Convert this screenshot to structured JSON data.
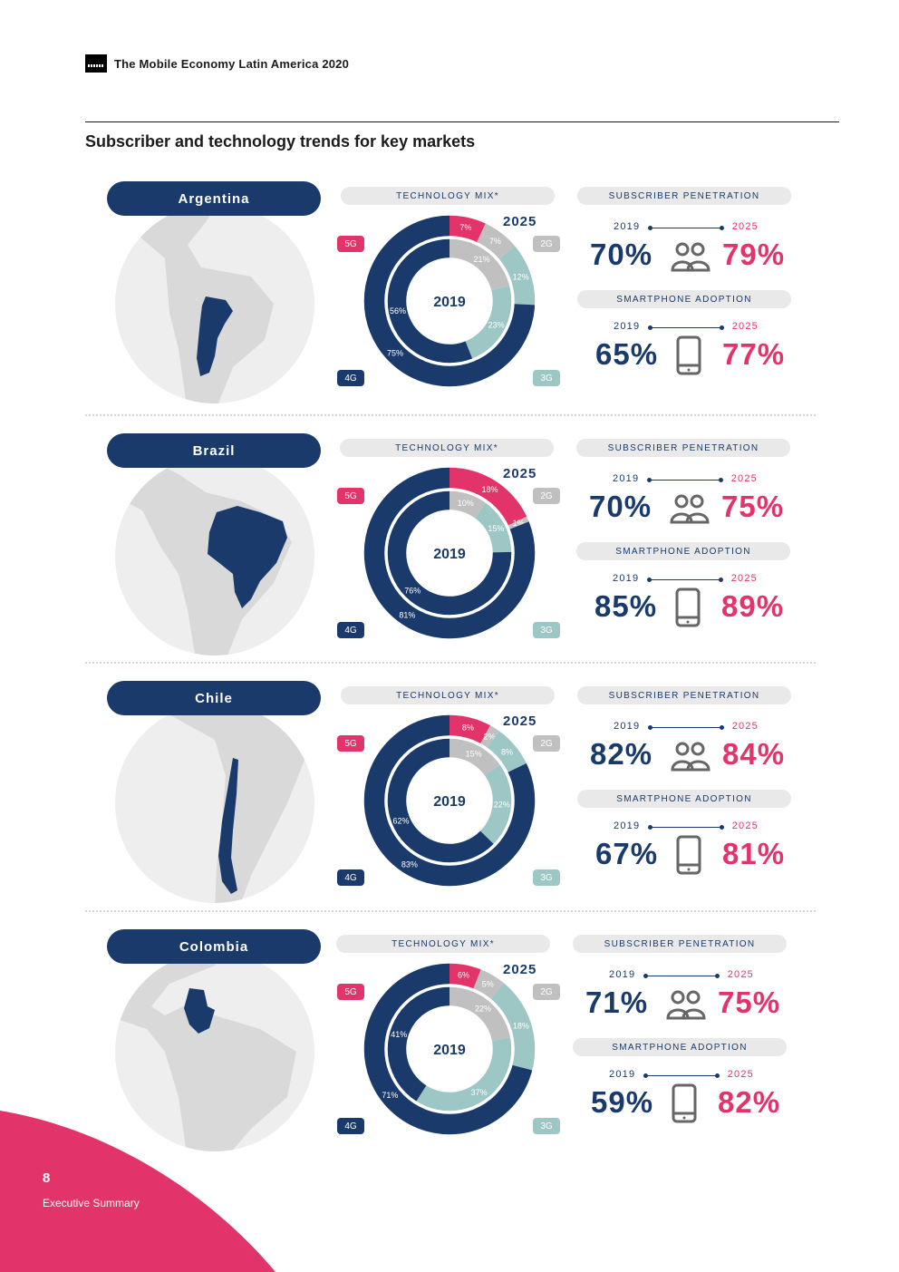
{
  "header": {
    "doc_title": "The Mobile Economy Latin America 2020"
  },
  "section_title": "Subscriber and technology trends for key markets",
  "labels": {
    "technology_mix": "TECHNOLOGY MIX*",
    "subscriber_penetration": "SUBSCRIBER PENETRATION",
    "smartphone_adoption": "SMARTPHONE ADOPTION",
    "year_start": "2019",
    "year_end": "2025",
    "tag_5g": "5G",
    "tag_2g": "2G",
    "tag_4g": "4G",
    "tag_3g": "3G"
  },
  "colors": {
    "navy": "#1a3a6b",
    "pink": "#e2336b",
    "grey": "#c0c0c0",
    "teal": "#9cc7c4"
  },
  "markets": [
    {
      "name": "Argentina",
      "chart_2019": [
        {
          "tech": "2G",
          "value": 21
        },
        {
          "tech": "3G",
          "value": 23
        },
        {
          "tech": "4G",
          "value": 56
        }
      ],
      "chart_2025": [
        {
          "tech": "5G",
          "value": 7
        },
        {
          "tech": "2G",
          "value": 7
        },
        {
          "tech": "3G",
          "value": 12
        },
        {
          "tech": "4G",
          "value": 75
        }
      ],
      "subscriber_penetration": {
        "v2019": "70%",
        "v2025": "79%"
      },
      "smartphone_adoption": {
        "v2019": "65%",
        "v2025": "77%"
      }
    },
    {
      "name": "Brazil",
      "chart_2019": [
        {
          "tech": "2G",
          "value": 10
        },
        {
          "tech": "3G",
          "value": 15
        },
        {
          "tech": "4G",
          "value": 76
        }
      ],
      "chart_2025": [
        {
          "tech": "5G",
          "value": 18
        },
        {
          "tech": "2G",
          "value": 1
        },
        {
          "tech": "4G",
          "value": 81
        }
      ],
      "subscriber_penetration": {
        "v2019": "70%",
        "v2025": "75%"
      },
      "smartphone_adoption": {
        "v2019": "85%",
        "v2025": "89%"
      }
    },
    {
      "name": "Chile",
      "chart_2019": [
        {
          "tech": "2G",
          "value": 15
        },
        {
          "tech": "3G",
          "value": 22
        },
        {
          "tech": "4G",
          "value": 62
        }
      ],
      "chart_2025": [
        {
          "tech": "5G",
          "value": 8
        },
        {
          "tech": "2G",
          "value": 2
        },
        {
          "tech": "3G",
          "value": 8
        },
        {
          "tech": "4G",
          "value": 83
        }
      ],
      "subscriber_penetration": {
        "v2019": "82%",
        "v2025": "84%"
      },
      "smartphone_adoption": {
        "v2019": "67%",
        "v2025": "81%"
      }
    },
    {
      "name": "Colombia",
      "chart_2019": [
        {
          "tech": "2G",
          "value": 22
        },
        {
          "tech": "3G",
          "value": 37
        },
        {
          "tech": "4G",
          "value": 41
        }
      ],
      "chart_2025": [
        {
          "tech": "5G",
          "value": 6
        },
        {
          "tech": "2G",
          "value": 5
        },
        {
          "tech": "3G",
          "value": 18
        },
        {
          "tech": "4G",
          "value": 71
        }
      ],
      "subscriber_penetration": {
        "v2019": "71%",
        "v2025": "75%"
      },
      "smartphone_adoption": {
        "v2019": "59%",
        "v2025": "82%"
      }
    }
  ],
  "footer": {
    "page_number": "8",
    "section": "Executive Summary"
  }
}
